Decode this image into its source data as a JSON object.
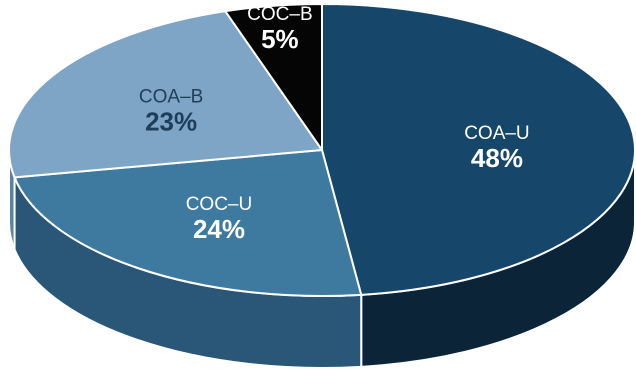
{
  "chart_data": {
    "type": "pie",
    "style": "3d",
    "categories": [
      "COA–U",
      "COC–U",
      "COA–B",
      "COC–B"
    ],
    "values": [
      48,
      24,
      23,
      5
    ],
    "value_labels": [
      "48%",
      "24%",
      "23%",
      "5%"
    ],
    "colors": {
      "top": [
        "#16476a",
        "#3e7aa0",
        "#7ea5c5",
        "#050505"
      ],
      "side": [
        "#0b2438",
        "#2a5778",
        "#5b83a3",
        "#000000"
      ]
    },
    "label_colors": {
      "name": [
        "#ffffff",
        "#ffffff",
        "#1d3f5c",
        "#ffffff"
      ],
      "value": [
        "#ffffff",
        "#ffffff",
        "#1d3f5c",
        "#ffffff"
      ]
    },
    "title": "",
    "legend": "none"
  }
}
